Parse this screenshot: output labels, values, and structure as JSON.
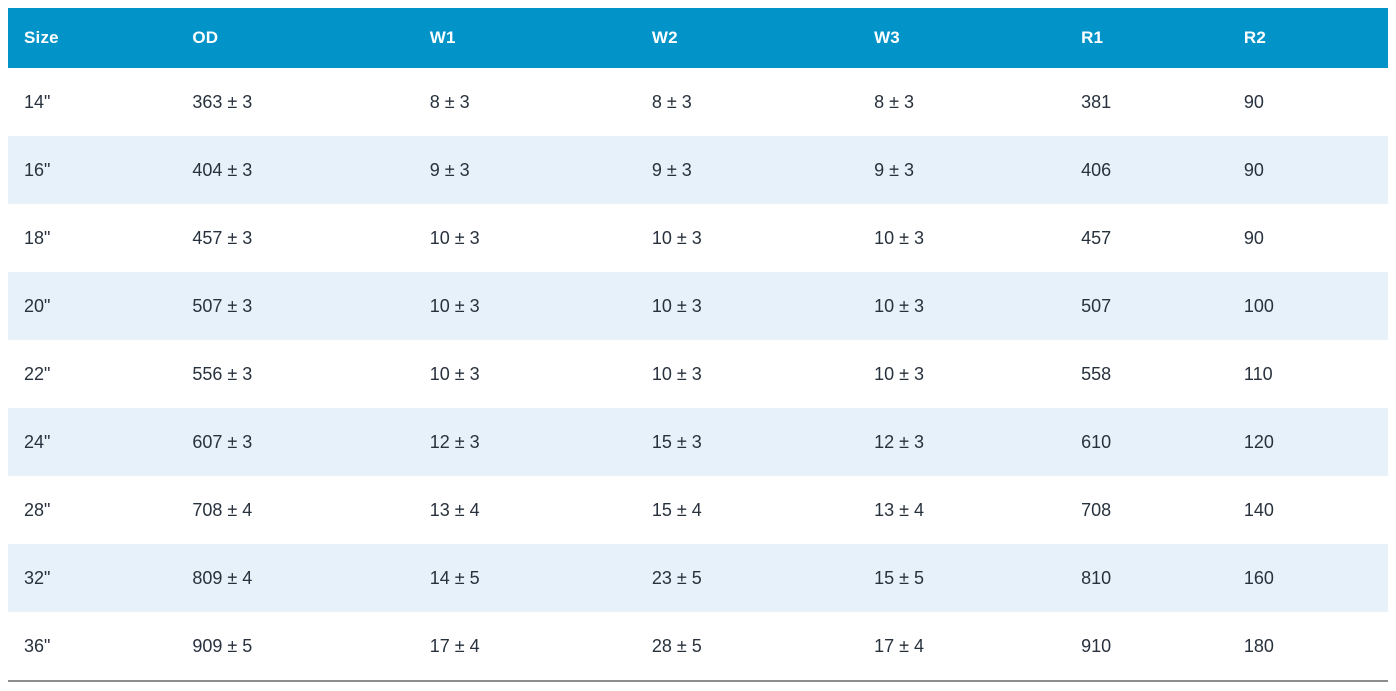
{
  "table": {
    "columns": [
      "Size",
      "OD",
      "W1",
      "W2",
      "W3",
      "R1",
      "R2"
    ],
    "rows": [
      [
        "14\"",
        "363 ± 3",
        "8 ± 3",
        "8 ± 3",
        "8 ± 3",
        "381",
        "90"
      ],
      [
        "16\"",
        "404 ± 3",
        "9 ± 3",
        "9 ± 3",
        "9 ± 3",
        "406",
        "90"
      ],
      [
        "18\"",
        "457 ± 3",
        "10 ± 3",
        "10 ± 3",
        "10 ± 3",
        "457",
        "90"
      ],
      [
        "20\"",
        "507 ± 3",
        "10 ± 3",
        "10 ± 3",
        "10 ± 3",
        "507",
        "100"
      ],
      [
        "22\"",
        "556 ± 3",
        "10 ± 3",
        "10 ± 3",
        "10 ± 3",
        "558",
        "110"
      ],
      [
        "24\"",
        "607 ± 3",
        "12 ± 3",
        "15 ± 3",
        "12 ± 3",
        "610",
        "120"
      ],
      [
        "28\"",
        "708 ± 4",
        "13 ± 4",
        "15 ± 4",
        "13 ± 4",
        "708",
        "140"
      ],
      [
        "32\"",
        "809 ± 4",
        "14 ± 5",
        "23 ± 5",
        "15 ± 5",
        "810",
        "160"
      ],
      [
        "36\"",
        "909 ± 5",
        "17 ± 4",
        "28 ± 5",
        "17 ± 4",
        "910",
        "180"
      ]
    ],
    "colors": {
      "header_bg": "#0294C8",
      "header_text": "#FFFFFF",
      "row_bg": "#FFFFFF",
      "row_alt_bg": "#E7F1F9",
      "cell_text": "#28323E",
      "bottom_border": "#8D8D8D"
    }
  }
}
